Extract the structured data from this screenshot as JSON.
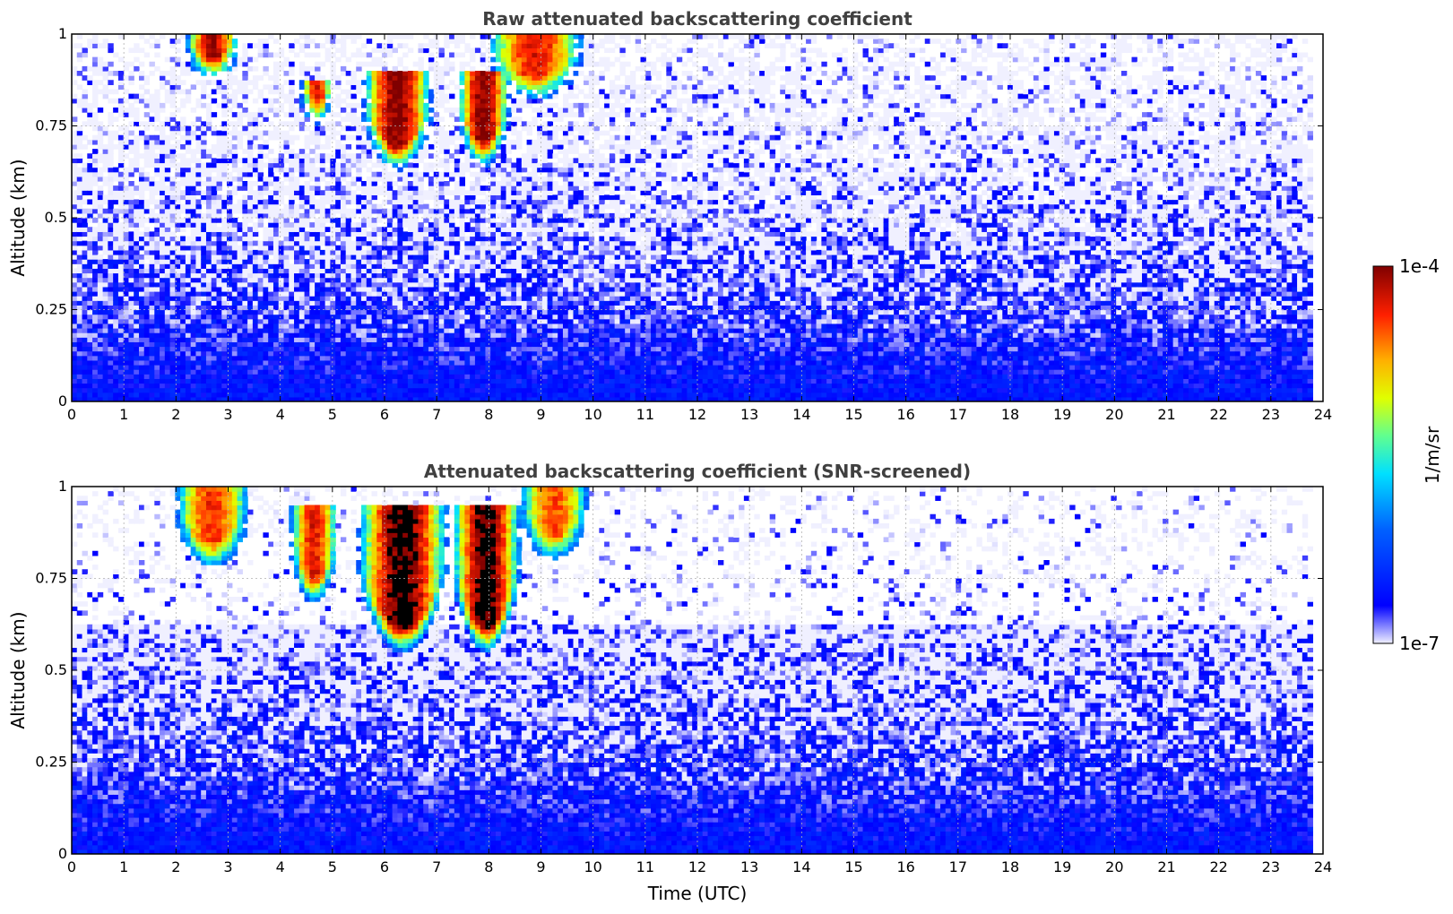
{
  "chart_data": [
    {
      "type": "heatmap",
      "title": "Raw attenuated backscattering coefficient",
      "xlabel": "",
      "ylabel": "Altitude (km)",
      "xlim": [
        0,
        24
      ],
      "ylim": [
        0,
        1
      ],
      "x_ticks": [
        "0",
        "1",
        "2",
        "3",
        "4",
        "5",
        "6",
        "7",
        "8",
        "9",
        "10",
        "11",
        "12",
        "13",
        "14",
        "15",
        "16",
        "17",
        "18",
        "19",
        "20",
        "21",
        "22",
        "23",
        "24"
      ],
      "y_ticks": [
        "0",
        "0.25",
        "0.5",
        "0.75",
        "1"
      ],
      "grid": true,
      "data_end_time": 23.8,
      "dropout_time": 5.05,
      "cloud_features": [
        {
          "t_start": 2.2,
          "t_end": 3.2,
          "alt_bottom": 0.87,
          "alt_top": 1.0,
          "max_log10": -4.1
        },
        {
          "t_start": 4.4,
          "t_end": 5.0,
          "alt_bottom": 0.75,
          "alt_top": 0.88,
          "max_log10": -4.3
        },
        {
          "t_start": 5.6,
          "t_end": 6.9,
          "alt_bottom": 0.63,
          "alt_top": 0.9,
          "max_log10": -4.0
        },
        {
          "t_start": 7.4,
          "t_end": 8.4,
          "alt_bottom": 0.64,
          "alt_top": 0.9,
          "max_log10": -4.0
        },
        {
          "t_start": 8.0,
          "t_end": 9.8,
          "alt_bottom": 0.82,
          "alt_top": 1.0,
          "max_log10": -4.3
        }
      ]
    },
    {
      "type": "heatmap",
      "title": "Attenuated backscattering coefficient (SNR-screened)",
      "xlabel": "Time (UTC)",
      "ylabel": "Altitude (km)",
      "xlim": [
        0,
        24
      ],
      "ylim": [
        0,
        1
      ],
      "x_ticks": [
        "0",
        "1",
        "2",
        "3",
        "4",
        "5",
        "6",
        "7",
        "8",
        "9",
        "10",
        "11",
        "12",
        "13",
        "14",
        "15",
        "16",
        "17",
        "18",
        "19",
        "20",
        "21",
        "22",
        "23",
        "24"
      ],
      "y_ticks": [
        "0",
        "0.25",
        "0.5",
        "0.75",
        "1"
      ],
      "grid": true,
      "data_end_time": 23.8,
      "dropout_time": 5.05,
      "cloud_features": [
        {
          "t_start": 2.0,
          "t_end": 3.4,
          "alt_bottom": 0.78,
          "alt_top": 1.0,
          "max_log10": -4.4
        },
        {
          "t_start": 4.2,
          "t_end": 5.1,
          "alt_bottom": 0.68,
          "alt_top": 0.95,
          "max_log10": -4.3
        },
        {
          "t_start": 5.5,
          "t_end": 7.2,
          "alt_bottom": 0.55,
          "alt_top": 0.95,
          "max_log10": -3.9
        },
        {
          "t_start": 7.3,
          "t_end": 8.6,
          "alt_bottom": 0.55,
          "alt_top": 0.95,
          "max_log10": -3.9
        },
        {
          "t_start": 8.6,
          "t_end": 9.9,
          "alt_bottom": 0.8,
          "alt_top": 1.0,
          "max_log10": -4.5
        }
      ],
      "boundary_layer_top_km": 0.57
    }
  ],
  "colorbar": {
    "label": "1/m/sr",
    "min_label": "1e-7",
    "max_label": "1e-4",
    "scale": "log",
    "range": [
      1e-07,
      0.0001
    ],
    "colormap": "jet",
    "under_color": "#ffffff",
    "over_color": "#000000"
  }
}
